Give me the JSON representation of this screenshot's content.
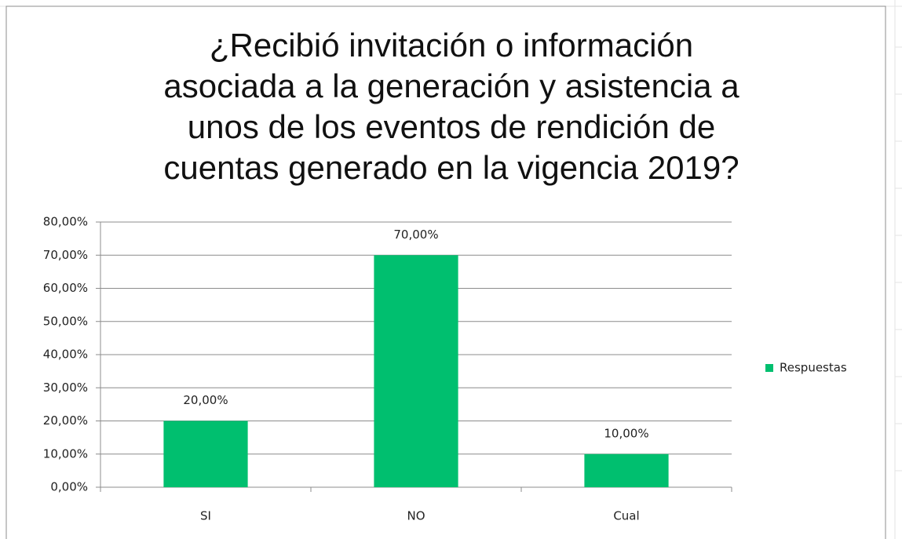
{
  "chart_data": {
    "type": "bar",
    "title": "¿Recibió invitación o información\nasociada a la generación y asistencia a\nunos de los eventos de rendición de\ncuentas generado en la vigencia 2019?",
    "categories": [
      "SI",
      "NO",
      "Cual"
    ],
    "series": [
      {
        "name": "Respuestas",
        "color": "#00bf6f",
        "values": [
          20,
          70,
          10
        ],
        "value_labels": [
          "20,00%",
          "70,00%",
          "10,00%"
        ]
      }
    ],
    "ylim": [
      0,
      80
    ],
    "yticks": [
      {
        "value": 0,
        "label": "0,00%"
      },
      {
        "value": 10,
        "label": "10,00%"
      },
      {
        "value": 20,
        "label": "20,00%"
      },
      {
        "value": 30,
        "label": "30,00%"
      },
      {
        "value": 40,
        "label": "40,00%"
      },
      {
        "value": 50,
        "label": "50,00%"
      },
      {
        "value": 60,
        "label": "60,00%"
      },
      {
        "value": 70,
        "label": "70,00%"
      },
      {
        "value": 80,
        "label": "80,00%"
      }
    ],
    "grid": true,
    "legend": "right"
  }
}
